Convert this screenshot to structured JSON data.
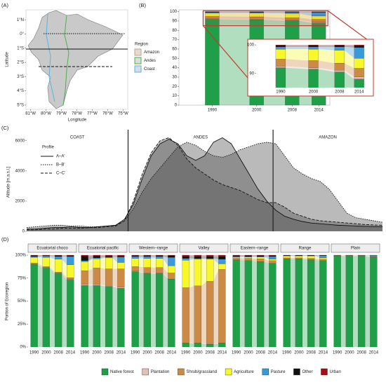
{
  "chart_data": [
    {
      "type": "map",
      "panel": "(A)",
      "xlabel": "Longitude",
      "ylabel": "Latitude",
      "xlim": [
        -81.3,
        -74.7
      ],
      "ylim": [
        -5.3,
        1.7
      ],
      "xticks": [
        {
          "value": -81,
          "label": "81°W"
        },
        {
          "value": -80,
          "label": "80°W"
        },
        {
          "value": -79,
          "label": "79°W"
        },
        {
          "value": -78,
          "label": "78°W"
        },
        {
          "value": -77,
          "label": "77°W"
        },
        {
          "value": -76,
          "label": "76°W"
        },
        {
          "value": -75,
          "label": "75°W"
        }
      ],
      "yticks": [
        {
          "value": 1,
          "label": "1°N"
        },
        {
          "value": 0,
          "label": "0°"
        },
        {
          "value": -1,
          "label": "1°S"
        },
        {
          "value": -2,
          "label": "2°S"
        },
        {
          "value": -3,
          "label": "3°S"
        },
        {
          "value": -4,
          "label": "4°S"
        },
        {
          "value": -5,
          "label": "5°S"
        }
      ],
      "legend_title": "Region",
      "regions": [
        {
          "name": "Amazon",
          "color": "#c8a27a"
        },
        {
          "name": "Andes",
          "color": "#4daf4a"
        },
        {
          "name": "Coast",
          "color": "#56b4e9"
        }
      ]
    },
    {
      "type": "stacked-bar",
      "panel": "(B)",
      "x": [
        1990,
        2000,
        2008,
        2014
      ],
      "xlim": [
        1982.5,
        2016.5
      ],
      "xticks": [
        1990,
        2000,
        2008,
        2014
      ],
      "ylim": [
        0,
        102
      ],
      "yticks": [
        0,
        10,
        20,
        30,
        40,
        50,
        60,
        70,
        80,
        90,
        100
      ],
      "series": [
        {
          "color": "#1fa048",
          "values": [
            92,
            91.5,
            90.5,
            88
          ]
        },
        {
          "color": "#e3c0b4",
          "values": [
            0.5,
            0.5,
            0.6,
            0.8
          ]
        },
        {
          "color": "#cd8a45",
          "values": [
            2.5,
            2.5,
            2.5,
            3
          ]
        },
        {
          "color": "#f7f72a",
          "values": [
            3.5,
            4,
            4.5,
            3.5
          ]
        },
        {
          "color": "#3a9ad9",
          "values": [
            0.8,
            0.8,
            1.2,
            3.8
          ]
        },
        {
          "color": "#111111",
          "values": [
            0.5,
            0.5,
            0.5,
            0.6
          ]
        },
        {
          "color": "#a50f15",
          "values": [
            0.2,
            0.2,
            0.2,
            0.3
          ]
        }
      ],
      "inset": {
        "xlim": [
          1982.5,
          2017.5
        ],
        "ylim": [
          85,
          101
        ],
        "yticks": [
          90,
          100
        ]
      },
      "zoom_color": "#c0392b"
    },
    {
      "type": "area-line",
      "panel": "(C)",
      "ylabel": "Altitude [m.a.s.l.]",
      "x": [
        0,
        1,
        2,
        3,
        4,
        5,
        6,
        7,
        8,
        9,
        10,
        11,
        12,
        13,
        14,
        15,
        16,
        17,
        18,
        19,
        20,
        21,
        22,
        23,
        24,
        25,
        26,
        27,
        28,
        29,
        30,
        31,
        32,
        33,
        34,
        35,
        36,
        37,
        38,
        39,
        40
      ],
      "xlim": [
        0,
        40
      ],
      "ylim": [
        0,
        6500
      ],
      "yticks": [
        0,
        2000,
        4000,
        6000
      ],
      "regions": [
        "COAST",
        "ANDES",
        "AMAZON"
      ],
      "boundaries": [
        11.4,
        27.7
      ],
      "legend_title": "Profile",
      "series": [
        {
          "name": "A–A'",
          "dash": "solid",
          "color": "#111111",
          "values": [
            150,
            150,
            200,
            250,
            250,
            300,
            250,
            250,
            300,
            350,
            400,
            800,
            1800,
            3500,
            5000,
            5800,
            6100,
            5800,
            5000,
            4700,
            5000,
            5900,
            6200,
            5800,
            4800,
            3800,
            2800,
            2000,
            1400,
            1000,
            800,
            650,
            550,
            500,
            450,
            400,
            380,
            350,
            330,
            310,
            300
          ]
        },
        {
          "name": "B–B'",
          "dash": "dotted",
          "color": "#111111",
          "values": [
            250,
            300,
            350,
            400,
            400,
            350,
            350,
            300,
            300,
            350,
            400,
            700,
            1500,
            2600,
            3500,
            4200,
            4900,
            5600,
            5900,
            5700,
            5300,
            5000,
            4900,
            5100,
            5400,
            5600,
            5800,
            5900,
            5800,
            5000,
            4200,
            3800,
            3500,
            3300,
            2800,
            2000,
            1200,
            900,
            800,
            700,
            600
          ]
        },
        {
          "name": "C–C'",
          "dash": "dashed",
          "color": "#111111",
          "values": [
            100,
            100,
            150,
            150,
            200,
            200,
            200,
            250,
            250,
            300,
            350,
            700,
            2000,
            3800,
            5200,
            6000,
            6200,
            5700,
            4800,
            4200,
            3800,
            3400,
            3100,
            2900,
            2700,
            2400,
            2100,
            1900,
            1900,
            1600,
            1200,
            1000,
            800,
            700,
            650,
            600,
            550,
            500,
            450,
            420,
            400
          ]
        }
      ]
    },
    {
      "type": "faceted-stacked-bar",
      "panel": "(D)",
      "ylabel": "Portion of Ecoregion",
      "categories": [
        "1990",
        "2000",
        "2008",
        "2014"
      ],
      "ylim": [
        0,
        100
      ],
      "yticks": [
        {
          "value": 0,
          "label": "0%"
        },
        {
          "value": 25,
          "label": "25%"
        },
        {
          "value": 50,
          "label": "50%"
        },
        {
          "value": 75,
          "label": "75%"
        },
        {
          "value": 100,
          "label": "100%"
        }
      ],
      "series": [
        {
          "name": "Native forest",
          "color": "#1fa048"
        },
        {
          "name": "Plantation",
          "color": "#e3c0b4"
        },
        {
          "name": "Shrub/grassland",
          "color": "#cd8a45"
        },
        {
          "name": "Agriculture",
          "color": "#f7f72a"
        },
        {
          "name": "Pasture",
          "color": "#3a9ad9"
        },
        {
          "name": "Other",
          "color": "#111111"
        },
        {
          "name": "Urban",
          "color": "#a50f15"
        }
      ],
      "facets": [
        {
          "title": "Ecuatorial choco",
          "values": [
            [
              90,
              86,
              80,
              73
            ],
            [
              0.5,
              0.5,
              0.5,
              0.5
            ],
            [
              1,
              1,
              1,
              2
            ],
            [
              6,
              10,
              14,
              14
            ],
            [
              1,
              1.5,
              3,
              9
            ],
            [
              1,
              0.5,
              1,
              1
            ],
            [
              0.5,
              0.5,
              0.5,
              0.5
            ]
          ]
        },
        {
          "title": "Ecuatorial pacific",
          "values": [
            [
              67,
              67,
              66,
              64
            ],
            [
              1,
              1,
              1,
              1
            ],
            [
              15,
              18,
              18,
              20
            ],
            [
              10,
              10,
              12,
              7
            ],
            [
              1,
              1,
              1,
              6
            ],
            [
              5,
              2,
              1,
              1
            ],
            [
              1,
              1,
              1,
              1
            ]
          ]
        },
        {
          "title": "Western−range",
          "values": [
            [
              82,
              80,
              80,
              74
            ],
            [
              0.5,
              0.5,
              0.5,
              0.5
            ],
            [
              5,
              6,
              6,
              6
            ],
            [
              9,
              10,
              10,
              8
            ],
            [
              2,
              2,
              2,
              9
            ],
            [
              1,
              1,
              1,
              2
            ],
            [
              0.5,
              0.5,
              0.5,
              0.5
            ]
          ]
        },
        {
          "title": "Valley",
          "values": [
            [
              4,
              4,
              3,
              4
            ],
            [
              0.5,
              0.5,
              0.5,
              0.5
            ],
            [
              60,
              62,
              68,
              80
            ],
            [
              30,
              29,
              24,
              6
            ],
            [
              2,
              1,
              1,
              5
            ],
            [
              2,
              2,
              2,
              3
            ],
            [
              1.5,
              1.5,
              1.5,
              1.5
            ]
          ]
        },
        {
          "title": "Eastern−range",
          "values": [
            [
              95,
              94,
              93,
              91
            ],
            [
              0,
              0,
              0,
              0
            ],
            [
              2,
              2.5,
              3,
              3
            ],
            [
              1,
              1.5,
              2,
              1.5
            ],
            [
              0.5,
              0.5,
              0.5,
              3
            ],
            [
              1,
              1,
              1,
              1
            ],
            [
              0.5,
              0.5,
              0.5,
              0.5
            ]
          ]
        },
        {
          "title": "Range",
          "values": [
            [
              96,
              96,
              95,
              94
            ],
            [
              0,
              0,
              0,
              0
            ],
            [
              1,
              1,
              1.5,
              1.5
            ],
            [
              2,
              2,
              2.5,
              1.5
            ],
            [
              0.5,
              0.5,
              0.5,
              2.5
            ],
            [
              0.5,
              0.5,
              0.5,
              0.5
            ],
            [
              0,
              0,
              0,
              0
            ]
          ]
        },
        {
          "title": "Plain",
          "values": [
            [
              99,
              99,
              99,
              98
            ],
            [
              0,
              0,
              0,
              0
            ],
            [
              0.4,
              0.4,
              0.4,
              0.5
            ],
            [
              0.3,
              0.3,
              0.3,
              0.5
            ],
            [
              0.2,
              0.2,
              0.2,
              0.8
            ],
            [
              0.1,
              0.1,
              0.1,
              0.2
            ],
            [
              0,
              0,
              0,
              0
            ]
          ]
        }
      ]
    }
  ]
}
